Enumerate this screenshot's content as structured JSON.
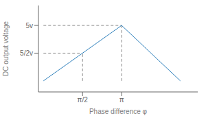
{
  "chart_data": {
    "type": "line",
    "x": [
      0,
      3.14159,
      5.5
    ],
    "values": [
      0,
      5,
      0
    ],
    "xlabel": "Phase difference φ",
    "ylabel": "DC output voltage",
    "xlim": [
      -0.2,
      6.2
    ],
    "ylim": [
      -1.0,
      6.8
    ],
    "xticks": [
      {
        "value": 1.5708,
        "label": "π/2"
      },
      {
        "value": 3.14159,
        "label": "π"
      }
    ],
    "yticks": [
      {
        "value": 2.5,
        "label": "5/2v"
      },
      {
        "value": 5,
        "label": "5v"
      }
    ],
    "grid": false
  }
}
